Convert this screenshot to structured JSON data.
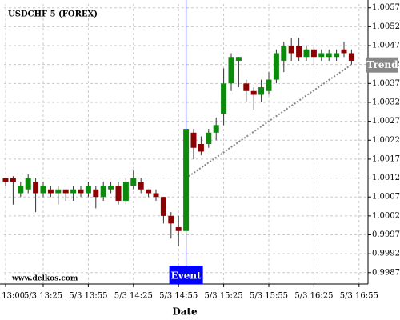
{
  "chart_data": {
    "type": "candlestick",
    "title": "USDCHF 5 (FOREX)",
    "x_label": "Date",
    "watermark": "www.delkos.com",
    "open": [
      1.0012,
      1.0012,
      1.0008,
      1.0009,
      1.0011,
      1.0008,
      1.0009,
      1.0008,
      1.0009,
      1.0008,
      1.0009,
      1.0008,
      1.0009,
      1.0007,
      1.0009,
      1.001,
      1.0006,
      1.001,
      1.0011,
      1.0009,
      1.0008,
      1.0007,
      1.0002,
      0.9999,
      0.9998,
      1.0024,
      1.0021,
      1.0021,
      1.0024,
      1.0029,
      1.0037,
      1.0043,
      1.0037,
      1.0035,
      1.0034,
      1.0035,
      1.0038,
      1.0043,
      1.0047,
      1.0047,
      1.0044,
      1.0046,
      1.0044,
      1.0044,
      1.0044,
      1.0046,
      1.0045
    ],
    "high": [
      1.0012,
      1.00125,
      1.0011,
      1.0013,
      1.0012,
      1.0011,
      1.001,
      1.001,
      1.0009,
      1.001,
      1.001,
      1.0011,
      1.001,
      1.0011,
      1.0011,
      1.0011,
      1.0012,
      1.0014,
      1.0012,
      1.0009,
      1.0009,
      1.0007,
      1.0003,
      1.0002,
      1.0025,
      1.0025,
      1.0023,
      1.0025,
      1.0028,
      1.0041,
      1.0045,
      1.0044,
      1.0038,
      1.0036,
      1.0038,
      1.004,
      1.0046,
      1.0048,
      1.0049,
      1.0049,
      1.0047,
      1.0047,
      1.0046,
      1.0046,
      1.0046,
      1.0048,
      1.0046
    ],
    "low": [
      1.001,
      1.0005,
      1.0007,
      1.0008,
      1.0003,
      1.0007,
      1.0007,
      1.0005,
      1.0006,
      1.0006,
      1.0007,
      1.0007,
      1.0004,
      1.0006,
      1.0008,
      1.0005,
      1.0005,
      1.0009,
      1.0008,
      1.0007,
      1.0006,
      1.0,
      0.9996,
      0.9994,
      0.9993,
      1.0017,
      1.0018,
      1.002,
      1.0022,
      1.0026,
      1.0035,
      1.0036,
      1.0032,
      1.003,
      1.0032,
      1.0034,
      1.0037,
      1.004,
      1.0043,
      1.0043,
      1.0043,
      1.0042,
      1.0043,
      1.0043,
      1.0043,
      1.0044,
      1.0042
    ],
    "close": [
      1.0011,
      1.0011,
      1.001,
      1.0012,
      1.0008,
      1.001,
      1.0008,
      1.0009,
      1.0008,
      1.0009,
      1.0008,
      1.001,
      1.0007,
      1.001,
      1.001,
      1.0006,
      1.0011,
      1.0012,
      1.0009,
      1.0008,
      1.0007,
      1.0002,
      1.0,
      0.9998,
      1.0025,
      1.002,
      1.0019,
      1.0024,
      1.0026,
      1.0037,
      1.0044,
      1.0044,
      1.0035,
      1.0034,
      1.0036,
      1.0038,
      1.0045,
      1.0047,
      1.0045,
      1.0044,
      1.0046,
      1.0044,
      1.0045,
      1.0045,
      1.0045,
      1.0045,
      1.0043
    ],
    "up_color": "#0b8a0b",
    "down_color": "#8b0000",
    "ylim": [
      0.9984,
      1.0058
    ],
    "yticks": [
      1.0057,
      1.0052,
      1.0047,
      1.0042,
      1.0037,
      1.0032,
      1.0027,
      1.0022,
      1.0017,
      1.0012,
      1.0007,
      1.0002,
      0.9997,
      0.9992,
      0.9987
    ],
    "xticks": [
      {
        "value": 0,
        "label": "5/3 13:00"
      },
      {
        "value": 5,
        "label": "5/3 13:25"
      },
      {
        "value": 11,
        "label": "5/3 13:55"
      },
      {
        "value": 17,
        "label": "5/3 14:25"
      },
      {
        "value": 23,
        "label": "5/3 14:55"
      },
      {
        "value": 29,
        "label": "5/3 15:25"
      },
      {
        "value": 35,
        "label": "5/3 15:55"
      },
      {
        "value": 41,
        "label": "5/3 16:25"
      },
      {
        "value": 47,
        "label": "5/3 16:55"
      }
    ],
    "grid": true,
    "event": {
      "label": "Event",
      "x": 24,
      "color": "#0000ff"
    },
    "trend": {
      "label": "Trend",
      "x": [
        24,
        46
      ],
      "y": [
        1.0012,
        1.0042
      ],
      "color": "#888888"
    }
  }
}
